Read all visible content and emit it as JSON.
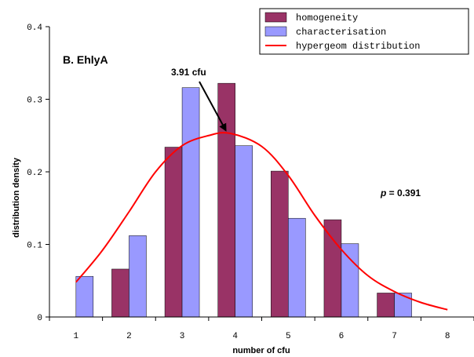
{
  "chart_data": {
    "type": "bar",
    "panel_label": "B. EhlyA",
    "xlabel": "number of cfu",
    "ylabel": "distribution density",
    "x_ticks": [
      "1",
      "2",
      "3",
      "4",
      "5",
      "6",
      "7",
      "8"
    ],
    "y_ticks": [
      "0",
      "0.1",
      "0.2",
      "0.3",
      "0.4"
    ],
    "ylim": [
      0,
      0.4
    ],
    "xlim": [
      0.5,
      8.5
    ],
    "grid": false,
    "legend_position": "top-right",
    "series": [
      {
        "name": "homogeneity",
        "kind": "bar",
        "color": "#993366",
        "x": [
          2,
          3,
          4,
          5,
          6,
          7
        ],
        "values": [
          0.066,
          0.234,
          0.322,
          0.201,
          0.134,
          0.033
        ]
      },
      {
        "name": "characterisation",
        "kind": "bar",
        "color": "#9999ff",
        "x": [
          1,
          2,
          3,
          4,
          5,
          6,
          7
        ],
        "values": [
          0.056,
          0.112,
          0.316,
          0.236,
          0.136,
          0.101,
          0.033
        ]
      },
      {
        "name": "hypergeom distribution",
        "kind": "line",
        "color": "#ff0000",
        "x": [
          1,
          1.5,
          2,
          2.5,
          3,
          3.5,
          3.91,
          4.5,
          5,
          5.5,
          6,
          6.5,
          7,
          7.5,
          8
        ],
        "values": [
          0.048,
          0.092,
          0.145,
          0.2,
          0.236,
          0.25,
          0.253,
          0.235,
          0.195,
          0.14,
          0.093,
          0.057,
          0.035,
          0.02,
          0.01
        ]
      }
    ],
    "annotations": {
      "peak_label": "3.91 cfu",
      "peak_x": 3.91,
      "peak_y": 0.253,
      "p_symbol": "p",
      "p_value": " = 0.391"
    }
  }
}
